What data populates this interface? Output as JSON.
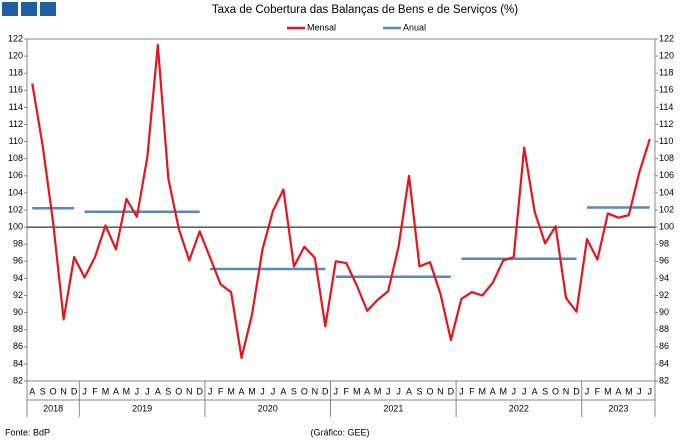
{
  "chart_data": {
    "type": "line",
    "title": "Taxa de Cobertura das Balanças de Bens e de Serviços (%)",
    "categories": [
      "A",
      "S",
      "O",
      "N",
      "D",
      "J",
      "F",
      "M",
      "A",
      "M",
      "J",
      "J",
      "A",
      "S",
      "O",
      "N",
      "D",
      "J",
      "F",
      "M",
      "A",
      "M",
      "J",
      "J",
      "A",
      "S",
      "O",
      "N",
      "D",
      "J",
      "F",
      "M",
      "A",
      "M",
      "J",
      "J",
      "A",
      "S",
      "O",
      "N",
      "D",
      "J",
      "F",
      "M",
      "A",
      "M",
      "J",
      "J",
      "A",
      "S",
      "O",
      "N",
      "D",
      "J",
      "F",
      "M",
      "A",
      "M",
      "J",
      "J"
    ],
    "years": [
      {
        "label": "2018",
        "months": 5
      },
      {
        "label": "2019",
        "months": 12
      },
      {
        "label": "2020",
        "months": 12
      },
      {
        "label": "2021",
        "months": 12
      },
      {
        "label": "2022",
        "months": 12
      },
      {
        "label": "2023",
        "months": 7
      }
    ],
    "series": [
      {
        "name": "Mensal",
        "color": "#e8141c",
        "values": [
          116.8,
          109.5,
          100.5,
          89.2,
          96.5,
          94.1,
          96.5,
          100.2,
          97.4,
          103.3,
          101.2,
          108.2,
          121.3,
          105.7,
          99.8,
          96.1,
          99.5,
          96.4,
          93.3,
          92.4,
          84.7,
          89.8,
          97.4,
          101.9,
          104.4,
          95.4,
          97.7,
          96.4,
          88.4,
          96.0,
          95.8,
          93.2,
          90.2,
          91.5,
          92.5,
          97.7,
          106.0,
          95.4,
          95.9,
          92.2,
          86.8,
          91.6,
          92.4,
          92.0,
          93.5,
          96.1,
          96.5,
          109.3,
          101.8,
          98.1,
          100.1,
          91.7,
          90.1,
          98.6,
          96.2,
          101.6,
          101.1,
          101.4,
          106.4,
          110.3
        ]
      },
      {
        "name": "Anual",
        "color": "#5a87c0",
        "values": [
          102.2,
          102.2,
          102.2,
          102.2,
          102.2,
          101.8,
          101.8,
          101.8,
          101.8,
          101.8,
          101.8,
          101.8,
          101.8,
          101.8,
          101.8,
          101.8,
          101.8,
          95.1,
          95.1,
          95.1,
          95.1,
          95.1,
          95.1,
          95.1,
          95.1,
          95.1,
          95.1,
          95.1,
          95.1,
          94.2,
          94.2,
          94.2,
          94.2,
          94.2,
          94.2,
          94.2,
          94.2,
          94.2,
          94.2,
          94.2,
          94.2,
          96.3,
          96.3,
          96.3,
          96.3,
          96.3,
          96.3,
          96.3,
          96.3,
          96.3,
          96.3,
          96.3,
          96.3,
          102.3,
          102.3,
          102.3,
          102.3,
          102.3,
          102.3,
          102.3
        ]
      }
    ],
    "ylim": [
      82,
      122
    ],
    "yticks": [
      82,
      84,
      86,
      88,
      90,
      92,
      94,
      96,
      98,
      100,
      102,
      104,
      106,
      108,
      110,
      112,
      114,
      116,
      118,
      120,
      122
    ],
    "y2lim": [
      82,
      122
    ],
    "y2ticks": [
      82,
      84,
      86,
      88,
      90,
      92,
      94,
      96,
      98,
      100,
      102,
      104,
      106,
      108,
      110,
      112,
      114,
      116,
      118,
      120,
      122
    ],
    "reference_line": 100,
    "legend": "top",
    "grid": false,
    "source": "Fonte: BdP",
    "credit": "(Gráfico: GEE)"
  }
}
